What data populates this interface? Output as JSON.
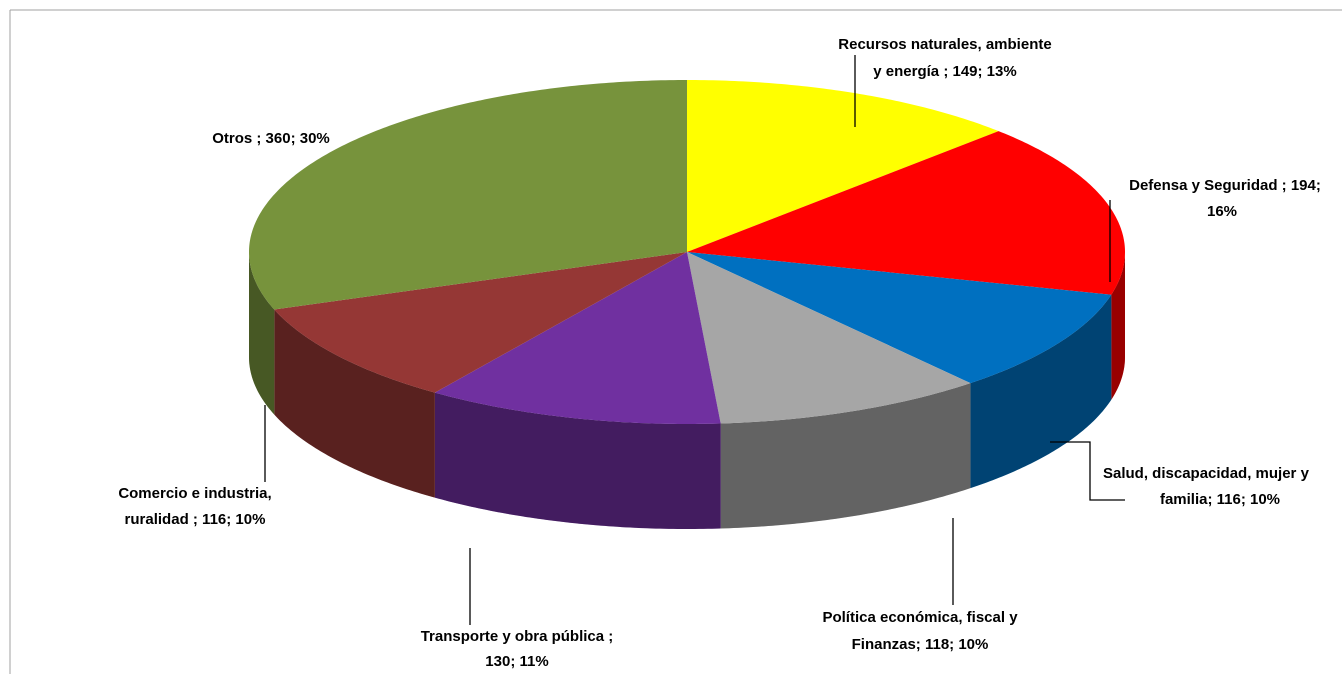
{
  "chart_data": {
    "type": "pie3d",
    "values": [
      149,
      194,
      116,
      118,
      130,
      116,
      360
    ],
    "value_labels": [
      [
        "Recursos naturales, ambiente",
        "y  energía ; 149; 13%"
      ],
      [
        "Defensa y Seguridad ; 194;",
        "16%"
      ],
      [
        "Salud, discapacidad, mujer y",
        "familia; 116; 10%"
      ],
      [
        "Política económica, fiscal y",
        "Finanzas; 118; 10%"
      ],
      [
        "Transporte y obra pública ;",
        "130; 11%"
      ],
      [
        "Comercio e industria,",
        "ruralidad ; 116; 10%"
      ],
      [
        "Otros ; 360; 30%"
      ]
    ],
    "colors": [
      "#ffff00",
      "#ff0000",
      "#0070c0",
      "#a6a6a6",
      "#7030a0",
      "#953735",
      "#77933c"
    ]
  }
}
